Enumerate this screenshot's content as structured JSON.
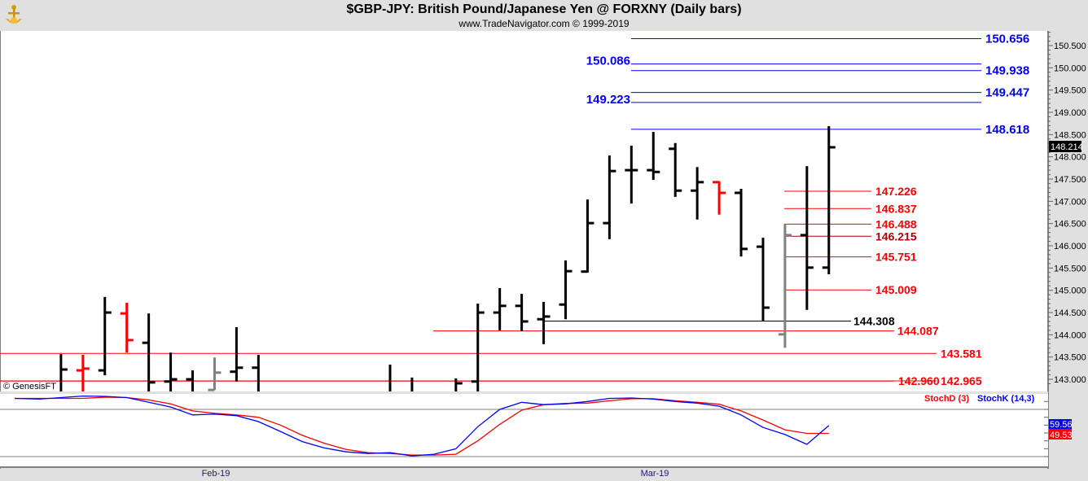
{
  "header": {
    "title": "$GBP-JPY:  British Pound/Japanese Yen @ FORXNY  (Daily bars)",
    "subtitle": "www.TradeNavigator.com © 1999-2019"
  },
  "watermark": "© GenesisFT",
  "colors": {
    "up": "#000000",
    "red": "#ff0000",
    "gray": "#808080",
    "blue": "#0000ff",
    "darkred": "#b00000"
  },
  "chart_data": [
    {
      "type": "ohlc",
      "title": "$GBP-JPY: British Pound/Japanese Yen @ FORXNY (Daily bars)",
      "ylim": [
        142.8,
        150.85
      ],
      "y_ticks": [
        "150.500",
        "150.000",
        "149.500",
        "149.000",
        "148.500",
        "148.000",
        "147.500",
        "147.000",
        "146.500",
        "146.000",
        "145.500",
        "145.000",
        "144.500",
        "144.000",
        "143.500",
        "143.000"
      ],
      "y_tick_values": [
        150.5,
        150,
        149.5,
        149,
        148.5,
        148,
        147.5,
        147,
        146.5,
        146,
        145.5,
        145,
        144.5,
        144,
        143.5,
        143
      ],
      "x_ticks": [
        {
          "label": "Feb-19",
          "bar": 9
        },
        {
          "label": "Mar-19",
          "bar": 29
        }
      ],
      "last_price": "148.214",
      "bars": [
        {
          "i": 2,
          "o": 142.6,
          "h": 143.57,
          "l": 142.6,
          "c": 143.22,
          "color": "up"
        },
        {
          "i": 3,
          "o": 143.2,
          "h": 143.55,
          "l": 142.6,
          "c": 143.24,
          "color": "red"
        },
        {
          "i": 4,
          "o": 143.2,
          "h": 144.85,
          "l": 143.09,
          "c": 144.5,
          "color": "up"
        },
        {
          "i": 5,
          "o": 144.48,
          "h": 144.72,
          "l": 143.6,
          "c": 143.88,
          "color": "red"
        },
        {
          "i": 6,
          "o": 143.82,
          "h": 144.48,
          "l": 142.6,
          "c": 142.93,
          "color": "up"
        },
        {
          "i": 7,
          "o": 142.95,
          "h": 143.6,
          "l": 142.6,
          "c": 143.0,
          "color": "up"
        },
        {
          "i": 8,
          "o": 143.0,
          "h": 143.2,
          "l": 142.6,
          "c": 142.6,
          "color": "up"
        },
        {
          "i": 9,
          "o": 142.76,
          "h": 143.49,
          "l": 142.76,
          "c": 143.15,
          "color": "gray"
        },
        {
          "i": 10,
          "o": 143.17,
          "h": 144.17,
          "l": 142.95,
          "c": 143.26,
          "color": "up"
        },
        {
          "i": 11,
          "o": 143.26,
          "h": 143.55,
          "l": 142.6,
          "c": 142.6,
          "color": "up"
        },
        {
          "i": 17,
          "o": 142.6,
          "h": 143.33,
          "l": 142.6,
          "c": 142.6,
          "color": "up"
        },
        {
          "i": 18,
          "o": 142.6,
          "h": 143.04,
          "l": 142.6,
          "c": 142.6,
          "color": "up"
        },
        {
          "i": 20,
          "o": 142.6,
          "h": 143.02,
          "l": 142.6,
          "c": 142.91,
          "color": "up"
        },
        {
          "i": 21,
          "o": 142.95,
          "h": 144.7,
          "l": 142.6,
          "c": 144.5,
          "color": "up"
        },
        {
          "i": 22,
          "o": 144.5,
          "h": 145.05,
          "l": 144.1,
          "c": 144.65,
          "color": "up"
        },
        {
          "i": 23,
          "o": 144.65,
          "h": 144.92,
          "l": 144.08,
          "c": 144.3,
          "color": "up"
        },
        {
          "i": 24,
          "o": 144.35,
          "h": 144.74,
          "l": 143.79,
          "c": 144.41,
          "color": "up"
        },
        {
          "i": 25,
          "o": 144.68,
          "h": 145.67,
          "l": 144.35,
          "c": 145.43,
          "color": "up"
        },
        {
          "i": 26,
          "o": 145.42,
          "h": 147.04,
          "l": 145.4,
          "c": 146.51,
          "color": "up"
        },
        {
          "i": 27,
          "o": 146.51,
          "h": 148.03,
          "l": 146.15,
          "c": 147.68,
          "color": "up"
        },
        {
          "i": 28,
          "o": 147.7,
          "h": 148.25,
          "l": 146.95,
          "c": 147.7,
          "color": "up"
        },
        {
          "i": 29,
          "o": 147.7,
          "h": 148.56,
          "l": 147.48,
          "c": 147.66,
          "color": "up"
        },
        {
          "i": 30,
          "o": 148.18,
          "h": 148.31,
          "l": 147.1,
          "c": 147.24,
          "color": "up"
        },
        {
          "i": 31,
          "o": 147.24,
          "h": 147.77,
          "l": 146.59,
          "c": 147.43,
          "color": "up"
        },
        {
          "i": 32,
          "o": 147.43,
          "h": 147.45,
          "l": 146.7,
          "c": 147.19,
          "color": "red"
        },
        {
          "i": 33,
          "o": 147.19,
          "h": 147.28,
          "l": 145.76,
          "c": 145.93,
          "color": "up"
        },
        {
          "i": 34,
          "o": 145.98,
          "h": 146.18,
          "l": 144.3,
          "c": 144.61,
          "color": "up"
        },
        {
          "i": 35,
          "o": 144.01,
          "h": 146.49,
          "l": 143.71,
          "c": 146.24,
          "color": "gray"
        },
        {
          "i": 36,
          "o": 146.24,
          "h": 147.79,
          "l": 144.56,
          "c": 145.51,
          "color": "up"
        },
        {
          "i": 37,
          "o": 145.51,
          "h": 148.69,
          "l": 145.36,
          "c": 148.214,
          "color": "up"
        }
      ],
      "levels": [
        {
          "price": 150.656,
          "label": "150.656",
          "color": "blue",
          "group": "blue-right"
        },
        {
          "price": 150.086,
          "label": "150.086",
          "color": "blue",
          "group": "blue-left"
        },
        {
          "price": 149.938,
          "label": "149.938",
          "color": "blue",
          "group": "blue-right"
        },
        {
          "price": 149.447,
          "label": "149.447",
          "color": "blue",
          "group": "blue-right"
        },
        {
          "price": 149.223,
          "label": "149.223",
          "color": "blue",
          "group": "blue-left"
        },
        {
          "price": 148.618,
          "label": "148.618",
          "color": "blue",
          "group": "blue-right"
        },
        {
          "price": 147.226,
          "label": "147.226",
          "color": "red",
          "group": "red-short"
        },
        {
          "price": 146.837,
          "label": "146.837",
          "color": "red",
          "group": "red-short"
        },
        {
          "price": 146.488,
          "label": "146.488",
          "color": "red",
          "group": "red-short"
        },
        {
          "price": 146.215,
          "label": "146.215",
          "color": "darkred",
          "group": "red-short"
        },
        {
          "price": 145.751,
          "label": "145.751",
          "color": "red",
          "group": "red-short"
        },
        {
          "price": 145.009,
          "label": "145.009",
          "color": "red",
          "group": "red-short"
        },
        {
          "price": 144.308,
          "label": "144.308",
          "color": "up",
          "group": "black"
        },
        {
          "price": 144.087,
          "label": "144.087",
          "color": "red",
          "group": "red-mid"
        },
        {
          "price": 143.581,
          "label": "143.581",
          "color": "red",
          "group": "red-full"
        },
        {
          "price": 142.96,
          "label": "142.960",
          "color": "red",
          "group": "red-mid-full"
        },
        {
          "price": 142.965,
          "label": "142.965",
          "color": "red",
          "group": "red-full"
        }
      ]
    },
    {
      "type": "line",
      "title": "Stochastic",
      "legend": [
        {
          "name": "StochD (3)",
          "color": "red"
        },
        {
          "name": "StochK (14,3)",
          "color": "blue"
        }
      ],
      "legend_position": "top-right",
      "ylim": [
        0,
        100
      ],
      "ref_lines": [
        80,
        20
      ],
      "last_values": {
        "k": "59.56",
        "d": "49.53"
      },
      "bar_index_start": 0,
      "series": [
        {
          "name": "StochK (14,3)",
          "color": "blue",
          "values": [
            94,
            93,
            95,
            97,
            96.5,
            95,
            89,
            83,
            73,
            74,
            72,
            64.5,
            52,
            39,
            31,
            26,
            24,
            25,
            21,
            23,
            30,
            58,
            80,
            89,
            86,
            87,
            90,
            94,
            94.5,
            93,
            90,
            88,
            84,
            73,
            57,
            48,
            35.5,
            59.56
          ]
        },
        {
          "name": "StochD (3)",
          "color": "red",
          "values": [
            94,
            94,
            94,
            94,
            95.5,
            95,
            92,
            87,
            78,
            75,
            73,
            70,
            60,
            47,
            37,
            29,
            25,
            24,
            22,
            22,
            23,
            40,
            61,
            79,
            86,
            87.5,
            88,
            91,
            93.5,
            93.5,
            91,
            89,
            86.5,
            78,
            66.5,
            54,
            49.53,
            49.53
          ]
        }
      ]
    }
  ]
}
